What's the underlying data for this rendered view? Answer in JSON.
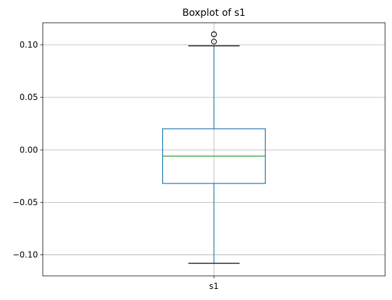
{
  "chart_data": {
    "type": "box",
    "title": "Boxplot of s1",
    "xlabel": "",
    "ylabel": "",
    "categories": [
      "s1"
    ],
    "ylim": [
      -0.12,
      0.121
    ],
    "yticks": [
      -0.1,
      -0.05,
      0.0,
      0.05,
      0.1
    ],
    "ytick_labels": [
      "−0.10",
      "−0.05",
      "0.00",
      "0.05",
      "0.10"
    ],
    "grid": true,
    "boxes": [
      {
        "name": "s1",
        "whisker_low": -0.108,
        "q1": -0.032,
        "median": -0.006,
        "q3": 0.02,
        "whisker_high": 0.099,
        "outliers": [
          0.103,
          0.11,
          0.11
        ]
      }
    ],
    "colors": {
      "box": "#1f77b4",
      "median": "#2ca02c",
      "cap": "#000000",
      "grid": "#b0b0b0"
    }
  }
}
